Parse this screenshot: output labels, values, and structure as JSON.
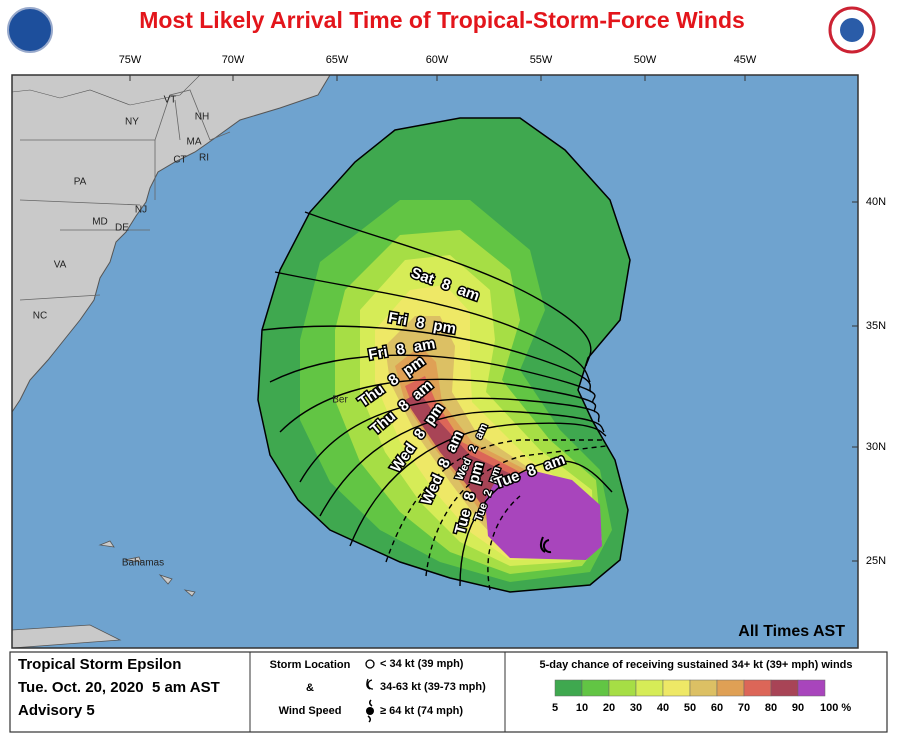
{
  "title": "Most Likely Arrival Time of Tropical-Storm-Force Winds",
  "longitude_labels": [
    "75W",
    "70W",
    "65W",
    "60W",
    "55W",
    "50W",
    "45W"
  ],
  "latitude_labels": [
    "40N",
    "35N",
    "30N",
    "25N"
  ],
  "place_labels": [
    "NY",
    "VT",
    "NH",
    "MA",
    "CT",
    "RI",
    "PA",
    "NJ",
    "MD",
    "DE",
    "VA",
    "NC",
    "Ber",
    "Bahamas"
  ],
  "arrival_labels": [
    "Sat 8 am",
    "Fri 8 pm",
    "Fri 8 am",
    "Thu 8 pm",
    "Thu 8 am",
    "Wed 8 pm",
    "Wed 8 am",
    "Wed 2 am",
    "Tue 8 pm",
    "Tue 2 pm",
    "Tue 8 am"
  ],
  "times_note": "All Times AST",
  "storm_info": {
    "name": "Tropical Storm Epsilon",
    "datetime": "Tue. Oct. 20, 2020  5 am AST",
    "advisory": "Advisory 5"
  },
  "storm_key": {
    "heading_top": "Storm Location",
    "and": "&",
    "heading_bottom": "Wind Speed",
    "items": [
      "< 34 kt (39 mph)",
      "34-63 kt (39-73 mph)",
      "≥ 64 kt (74 mph)"
    ]
  },
  "probability_legend": {
    "title": "5-day chance of receiving sustained 34+ kt (39+ mph) winds",
    "labels": [
      "5",
      "10",
      "20",
      "30",
      "40",
      "50",
      "60",
      "70",
      "80",
      "90",
      "100 %"
    ],
    "colors": [
      "#3fa84f",
      "#62c544",
      "#a6de45",
      "#d6ec57",
      "#eee866",
      "#dcc064",
      "#dfa055",
      "#dc6658",
      "#a84456",
      "#a845bc"
    ]
  }
}
